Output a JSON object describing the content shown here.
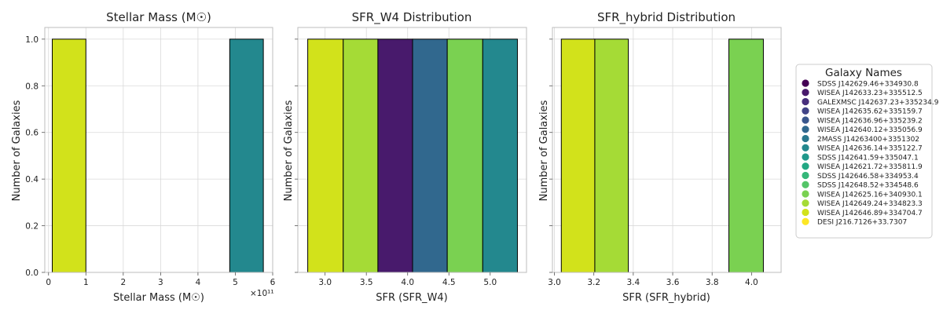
{
  "chart_data": [
    {
      "type": "bar",
      "subtype": "histogram",
      "title": "Stellar Mass (M☉)",
      "xlabel": "Stellar Mass (M☉)",
      "ylabel": "Number of Galaxies",
      "x_scale_label": "×10¹¹",
      "xlim": [
        -0.1,
        6.0
      ],
      "ylim": [
        0,
        1.05
      ],
      "xticks": [
        0,
        1,
        2,
        3,
        4,
        5,
        6
      ],
      "yticks": [
        0.0,
        0.2,
        0.4,
        0.6,
        0.8,
        1.0
      ],
      "grid": true,
      "bars": [
        {
          "x0": 0.1,
          "x1": 1.0,
          "value": 1,
          "galaxy_index": 14
        },
        {
          "x0": 4.85,
          "x1": 5.75,
          "value": 1,
          "galaxy_index": 7
        }
      ]
    },
    {
      "type": "bar",
      "subtype": "histogram",
      "title": "SFR_W4 Distribution",
      "xlabel": "SFR (SFR_W4)",
      "ylabel": "Number of Galaxies",
      "xlim": [
        2.67,
        5.44
      ],
      "ylim": [
        0,
        1.05
      ],
      "xticks": [
        3.0,
        3.5,
        4.0,
        4.5,
        5.0
      ],
      "yticks": [
        0.0,
        0.2,
        0.4,
        0.6,
        0.8,
        1.0
      ],
      "show_ytick_labels": false,
      "grid": true,
      "bars": [
        {
          "x0": 2.79,
          "x1": 3.22,
          "value": 1,
          "galaxy_index": 14
        },
        {
          "x0": 3.22,
          "x1": 3.64,
          "value": 1,
          "galaxy_index": 13
        },
        {
          "x0": 3.64,
          "x1": 4.06,
          "value": 1,
          "galaxy_index": 1
        },
        {
          "x0": 4.06,
          "x1": 4.48,
          "value": 1,
          "galaxy_index": 5
        },
        {
          "x0": 4.48,
          "x1": 4.91,
          "value": 1,
          "galaxy_index": 12
        },
        {
          "x0": 4.91,
          "x1": 5.33,
          "value": 1,
          "galaxy_index": 7
        }
      ]
    },
    {
      "type": "bar",
      "subtype": "histogram",
      "title": "SFR_hybrid Distribution",
      "xlabel": "SFR (SFR_hybrid)",
      "ylabel": "Number of Galaxies",
      "xlim": [
        2.99,
        4.15
      ],
      "ylim": [
        0,
        1.05
      ],
      "xticks": [
        3.0,
        3.2,
        3.4,
        3.6,
        3.8,
        4.0
      ],
      "yticks": [
        0.0,
        0.2,
        0.4,
        0.6,
        0.8,
        1.0
      ],
      "show_ytick_labels": false,
      "grid": true,
      "bars": [
        {
          "x0": 3.035,
          "x1": 3.205,
          "value": 1,
          "galaxy_index": 14
        },
        {
          "x0": 3.205,
          "x1": 3.375,
          "value": 1,
          "galaxy_index": 13
        },
        {
          "x0": 3.885,
          "x1": 4.06,
          "value": 1,
          "galaxy_index": 12
        }
      ]
    }
  ],
  "legend": {
    "title": "Galaxy Names",
    "placement": "right",
    "items": [
      {
        "name": "SDSS J142629.46+334930.8",
        "color": "#440154"
      },
      {
        "name": "WISEA J142633.23+335512.5",
        "color": "#481A6C"
      },
      {
        "name": "GALEXMSC J142637.23+335234.9",
        "color": "#472F7D"
      },
      {
        "name": "WISEA J142635.62+335159.7",
        "color": "#414487"
      },
      {
        "name": "WISEA J142636.96+335239.2",
        "color": "#39568C"
      },
      {
        "name": "WISEA J142640.12+335056.9",
        "color": "#31688E"
      },
      {
        "name": "2MASS J14263400+3351302",
        "color": "#2A788E"
      },
      {
        "name": "WISEA J142636.14+335122.7",
        "color": "#23888E"
      },
      {
        "name": "SDSS J142641.59+335047.1",
        "color": "#1F988B"
      },
      {
        "name": "WISEA J142621.72+335811.9",
        "color": "#22A884"
      },
      {
        "name": "SDSS J142646.58+334953.4",
        "color": "#35B779"
      },
      {
        "name": "SDSS J142648.52+334548.6",
        "color": "#54C568"
      },
      {
        "name": "WISEA J142625.16+340930.1",
        "color": "#7AD151"
      },
      {
        "name": "WISEA J142649.24+334823.3",
        "color": "#A5DB36"
      },
      {
        "name": "WISEA J142646.89+334704.7",
        "color": "#D2E21B"
      },
      {
        "name": "DESI J216.7126+33.7307",
        "color": "#FDE725"
      }
    ]
  }
}
